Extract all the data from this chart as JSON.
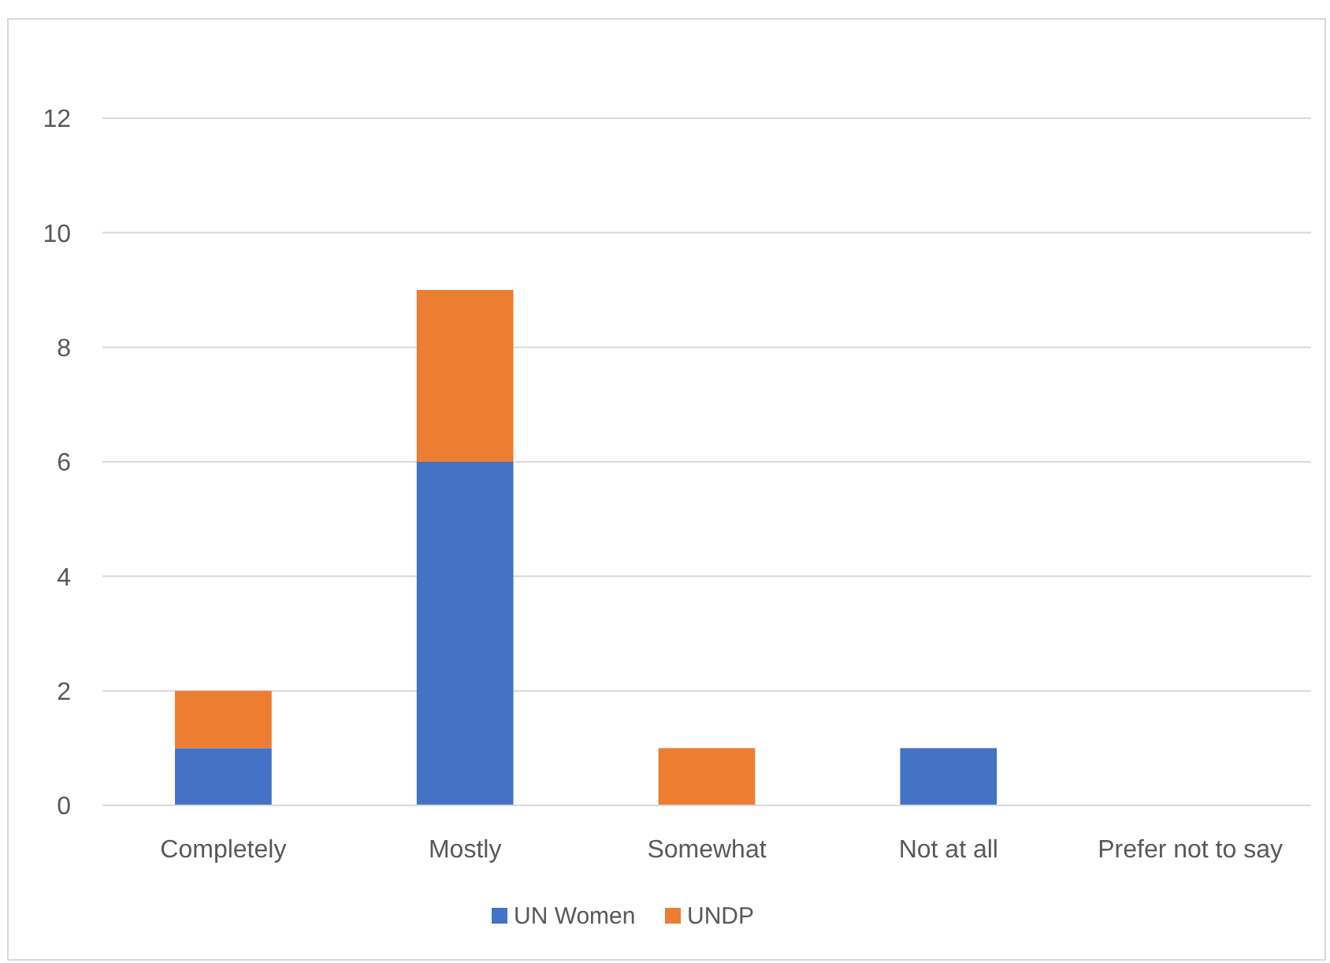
{
  "chart_data": {
    "type": "bar",
    "stacked": true,
    "categories": [
      "Completely",
      "Mostly",
      "Somewhat",
      "Not at all",
      "Prefer not to say"
    ],
    "series": [
      {
        "name": "UN Women",
        "color": "#4472c4",
        "values": [
          1,
          6,
          0,
          1,
          0
        ]
      },
      {
        "name": "UNDP",
        "color": "#ed7d31",
        "values": [
          1,
          3,
          1,
          0,
          0
        ]
      }
    ],
    "ylim": [
      0,
      12
    ],
    "yticks": [
      0,
      2,
      4,
      6,
      8,
      10,
      12
    ],
    "grid": "y",
    "legend": "bottom"
  }
}
